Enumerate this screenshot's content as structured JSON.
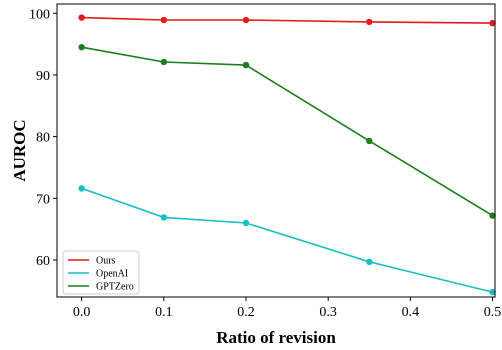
{
  "chart_data": {
    "type": "line",
    "xlabel": "Ratio of revision",
    "ylabel": "AUROC",
    "xlim": [
      -0.03,
      0.503
    ],
    "ylim": [
      54,
      101.5
    ],
    "xticks": [
      "0.0",
      "0.1",
      "0.2",
      "0.3",
      "0.4",
      "0.5"
    ],
    "yticks": [
      "60",
      "70",
      "80",
      "90",
      "100"
    ],
    "grid": false,
    "legend_position": "bottom-left",
    "series": [
      {
        "name": "Ours",
        "color": "#e41a1c",
        "x": [
          0.0,
          0.1,
          0.2,
          0.35,
          0.5
        ],
        "y": [
          99.3,
          98.9,
          98.9,
          98.6,
          98.4
        ]
      },
      {
        "name": "OpenAI",
        "color": "#17bfc4",
        "x": [
          0.0,
          0.1,
          0.2,
          0.35,
          0.5
        ],
        "y": [
          71.6,
          66.9,
          66.0,
          59.7,
          54.8
        ]
      },
      {
        "name": "GPTZero",
        "color": "#1b7f1b",
        "x": [
          0.0,
          0.1,
          0.2,
          0.35,
          0.5
        ],
        "y": [
          94.5,
          92.1,
          91.6,
          79.3,
          67.2
        ]
      }
    ]
  }
}
